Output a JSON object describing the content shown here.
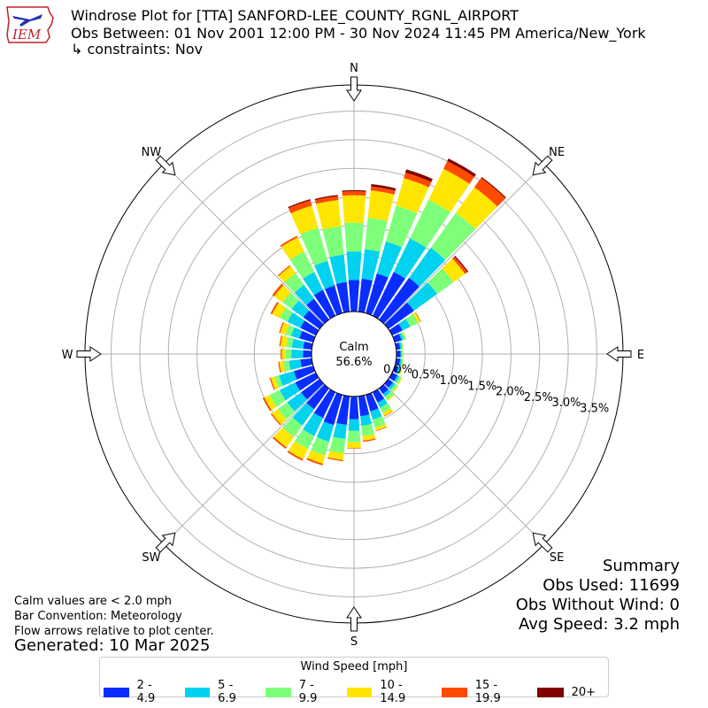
{
  "title": {
    "line1": "Windrose Plot for [TTA] SANFORD-LEE_COUNTY_RGNL_AIRPORT",
    "line2": "Obs Between: 01 Nov 2001 12:00 PM - 30 Nov 2024 11:45 PM America/New_York",
    "line3": "↳ constraints: Nov"
  },
  "logo_text": "IEM",
  "notes": {
    "calm_note": "Calm values are < 2.0 mph",
    "bar_note": "Bar Convention: Meteorology",
    "flow_note": "Flow arrows relative to plot center.",
    "generated": "Generated: 10 Mar 2025"
  },
  "summary": {
    "heading": "Summary",
    "obs_used": "Obs Used: 11699",
    "obs_without_wind": "Obs Without Wind: 0",
    "avg_speed": "Avg Speed: 3.2 mph"
  },
  "calm": {
    "label": "Calm",
    "value": "56.6%"
  },
  "colors": [
    "#0a2dff",
    "#00d2f0",
    "#7dff7a",
    "#ffe600",
    "#ff4a00",
    "#800000"
  ],
  "chart_data": {
    "type": "windrose",
    "title": "Windrose Plot for [TTA] SANFORD-LEE_COUNTY_RGNL_AIRPORT",
    "directions": [
      {
        "label": "N",
        "deg": 0
      },
      {
        "label": "NE",
        "deg": 45
      },
      {
        "label": "E",
        "deg": 90
      },
      {
        "label": "SE",
        "deg": 135
      },
      {
        "label": "S",
        "deg": 180
      },
      {
        "label": "SW",
        "deg": 225
      },
      {
        "label": "W",
        "deg": 270
      },
      {
        "label": "NW",
        "deg": 315
      }
    ],
    "radial_ticks": [
      "0.0%",
      "0.5%",
      "1.0%",
      "1.5%",
      "2.0%",
      "2.5%",
      "3.0%",
      "3.5%"
    ],
    "radial_max": 3.5,
    "calm_percent": 56.6,
    "legend_title": "Wind Speed [mph]",
    "speed_bins": [
      "2 - 4.9",
      "5 - 6.9",
      "7 - 9.9",
      "10 - 14.9",
      "15 - 19.9",
      "20+"
    ],
    "sectors": [
      {
        "deg": 0,
        "cumulative": [
          0.55,
          1.05,
          1.55,
          2.03,
          2.1,
          2.12
        ]
      },
      {
        "deg": 10,
        "cumulative": [
          0.58,
          1.1,
          1.65,
          2.13,
          2.2,
          2.24
        ]
      },
      {
        "deg": 20,
        "cumulative": [
          0.72,
          1.3,
          1.95,
          2.45,
          2.55,
          2.61
        ]
      },
      {
        "deg": 30,
        "cumulative": [
          0.85,
          1.5,
          2.25,
          2.85,
          3.0,
          3.05
        ]
      },
      {
        "deg": 40,
        "cumulative": [
          0.9,
          1.55,
          2.3,
          2.85,
          3.05,
          3.07
        ]
      },
      {
        "deg": 50,
        "cumulative": [
          0.55,
          1.05,
          1.4,
          1.65,
          1.7,
          1.72
        ]
      },
      {
        "deg": 60,
        "cumulative": [
          0.2,
          0.35,
          0.5,
          0.55,
          0.56,
          0.56
        ]
      },
      {
        "deg": 70,
        "cumulative": [
          0.12,
          0.16,
          0.2,
          0.21,
          0.21,
          0.21
        ]
      },
      {
        "deg": 80,
        "cumulative": [
          0.07,
          0.1,
          0.12,
          0.13,
          0.13,
          0.13
        ]
      },
      {
        "deg": 90,
        "cumulative": [
          0.07,
          0.09,
          0.11,
          0.12,
          0.12,
          0.12
        ]
      },
      {
        "deg": 100,
        "cumulative": [
          0.07,
          0.1,
          0.12,
          0.13,
          0.13,
          0.13
        ]
      },
      {
        "deg": 110,
        "cumulative": [
          0.07,
          0.1,
          0.13,
          0.14,
          0.14,
          0.14
        ]
      },
      {
        "deg": 120,
        "cumulative": [
          0.1,
          0.14,
          0.18,
          0.2,
          0.2,
          0.2
        ]
      },
      {
        "deg": 130,
        "cumulative": [
          0.1,
          0.15,
          0.2,
          0.22,
          0.22,
          0.22
        ]
      },
      {
        "deg": 140,
        "cumulative": [
          0.12,
          0.18,
          0.25,
          0.27,
          0.27,
          0.27
        ]
      },
      {
        "deg": 150,
        "cumulative": [
          0.2,
          0.3,
          0.4,
          0.46,
          0.47,
          0.47
        ]
      },
      {
        "deg": 160,
        "cumulative": [
          0.3,
          0.45,
          0.6,
          0.65,
          0.66,
          0.66
        ]
      },
      {
        "deg": 170,
        "cumulative": [
          0.35,
          0.52,
          0.7,
          0.78,
          0.8,
          0.8
        ]
      },
      {
        "deg": 180,
        "cumulative": [
          0.4,
          0.6,
          0.8,
          0.9,
          0.91,
          0.91
        ]
      },
      {
        "deg": 190,
        "cumulative": [
          0.5,
          0.75,
          1.0,
          1.12,
          1.14,
          1.14
        ]
      },
      {
        "deg": 200,
        "cumulative": [
          0.55,
          0.85,
          1.1,
          1.25,
          1.28,
          1.28
        ]
      },
      {
        "deg": 210,
        "cumulative": [
          0.5,
          0.85,
          1.1,
          1.3,
          1.33,
          1.33
        ]
      },
      {
        "deg": 220,
        "cumulative": [
          0.45,
          0.8,
          1.05,
          1.27,
          1.3,
          1.3
        ]
      },
      {
        "deg": 230,
        "cumulative": [
          0.4,
          0.7,
          0.9,
          1.03,
          1.05,
          1.05
        ]
      },
      {
        "deg": 240,
        "cumulative": [
          0.4,
          0.7,
          0.9,
          1.0,
          1.03,
          1.03
        ]
      },
      {
        "deg": 250,
        "cumulative": [
          0.35,
          0.62,
          0.7,
          0.77,
          0.79,
          0.79
        ]
      },
      {
        "deg": 260,
        "cumulative": [
          0.2,
          0.4,
          0.5,
          0.57,
          0.59,
          0.59
        ]
      },
      {
        "deg": 270,
        "cumulative": [
          0.15,
          0.35,
          0.45,
          0.52,
          0.54,
          0.54
        ]
      },
      {
        "deg": 280,
        "cumulative": [
          0.15,
          0.35,
          0.45,
          0.55,
          0.57,
          0.57
        ]
      },
      {
        "deg": 290,
        "cumulative": [
          0.25,
          0.4,
          0.5,
          0.6,
          0.62,
          0.62
        ]
      },
      {
        "deg": 300,
        "cumulative": [
          0.3,
          0.55,
          0.7,
          0.85,
          0.88,
          0.88
        ]
      },
      {
        "deg": 310,
        "cumulative": [
          0.35,
          0.6,
          0.8,
          0.98,
          1.02,
          1.02
        ]
      },
      {
        "deg": 320,
        "cumulative": [
          0.45,
          0.75,
          1.0,
          1.15,
          1.17,
          1.17
        ]
      },
      {
        "deg": 330,
        "cumulative": [
          0.5,
          0.85,
          1.25,
          1.52,
          1.55,
          1.55
        ]
      },
      {
        "deg": 340,
        "cumulative": [
          0.5,
          0.95,
          1.55,
          1.95,
          2.05,
          2.07
        ]
      },
      {
        "deg": 350,
        "cumulative": [
          0.52,
          1.0,
          1.5,
          1.96,
          2.03,
          2.05
        ]
      }
    ]
  }
}
